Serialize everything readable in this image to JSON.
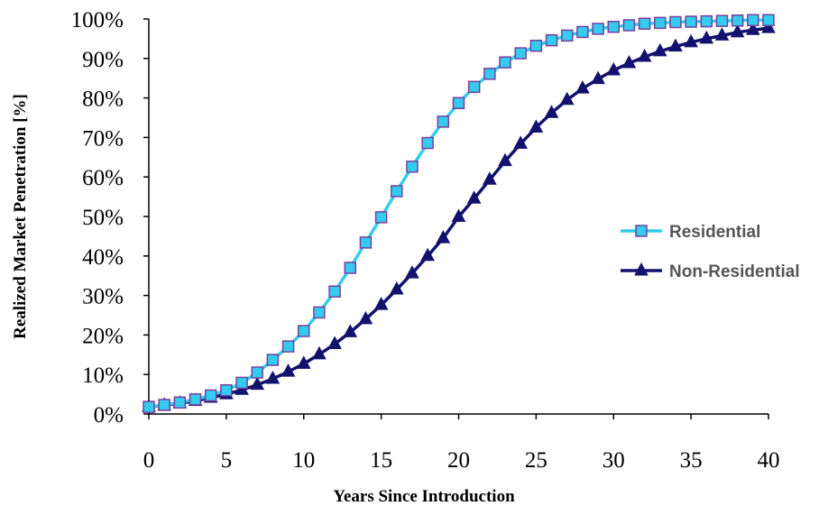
{
  "chart_data": {
    "type": "line",
    "title": "",
    "xlabel": "Years Since Introduction",
    "ylabel": "Realized Market Penetration [%]",
    "xlim": [
      0,
      40
    ],
    "ylim": [
      0,
      100
    ],
    "x_ticks": [
      "0",
      "5",
      "10",
      "15",
      "20",
      "25",
      "30",
      "35",
      "40"
    ],
    "y_ticks": [
      "0%",
      "10%",
      "20%",
      "30%",
      "40%",
      "50%",
      "60%",
      "70%",
      "80%",
      "90%",
      "100%"
    ],
    "grid": false,
    "legend_position": "right",
    "x": [
      0,
      1,
      2,
      3,
      4,
      5,
      6,
      7,
      8,
      9,
      10,
      11,
      12,
      13,
      14,
      15,
      16,
      17,
      18,
      19,
      20,
      21,
      22,
      23,
      24,
      25,
      26,
      27,
      28,
      29,
      30,
      31,
      32,
      33,
      34,
      35,
      36,
      37,
      38,
      39,
      40
    ],
    "series": [
      {
        "name": "Residential",
        "marker": "square",
        "line_color": "#33CCEE",
        "marker_fill": "#33CCEE",
        "marker_edge": "#7A3FA0",
        "values": [
          1.8,
          2.3,
          2.9,
          3.7,
          4.7,
          6.0,
          7.9,
          10.5,
          13.7,
          17.1,
          21.0,
          25.7,
          31.0,
          37.0,
          43.4,
          49.8,
          56.4,
          62.6,
          68.6,
          74.0,
          78.7,
          82.8,
          86.1,
          89.0,
          91.3,
          93.2,
          94.6,
          95.8,
          96.7,
          97.5,
          98.0,
          98.4,
          98.8,
          99.0,
          99.2,
          99.3,
          99.4,
          99.5,
          99.6,
          99.7,
          99.7
        ]
      },
      {
        "name": "Non-Residential",
        "marker": "triangle",
        "line_color": "#12126E",
        "marker_fill": "#12126E",
        "marker_edge": "#12126E",
        "values": [
          1.8,
          2.2,
          2.7,
          3.3,
          4.1,
          5.0,
          6.1,
          7.4,
          8.9,
          10.7,
          12.7,
          15.1,
          17.7,
          20.7,
          24.0,
          27.6,
          31.5,
          35.6,
          40.0,
          44.5,
          49.9,
          54.5,
          59.3,
          64.0,
          68.4,
          72.5,
          76.2,
          79.5,
          82.4,
          84.8,
          87.0,
          88.8,
          90.4,
          91.8,
          93.0,
          94.1,
          95.0,
          95.8,
          96.6,
          97.2,
          97.7
        ]
      }
    ]
  }
}
